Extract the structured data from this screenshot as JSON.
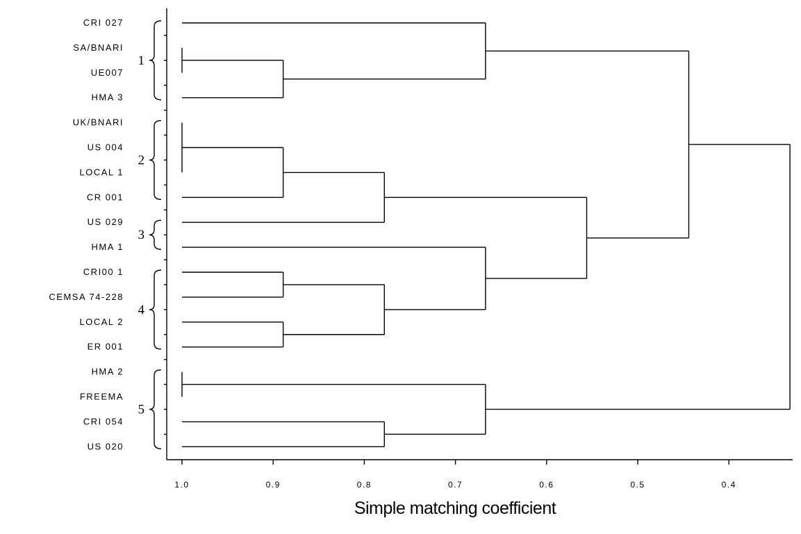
{
  "chart_data": {
    "type": "dendrogram",
    "xlabel": "Simple matching coefficient",
    "xlim": [
      1.0,
      0.33
    ],
    "ticks": [
      {
        "value": 1.0,
        "label": "1.0"
      },
      {
        "value": 0.9,
        "label": "0.9"
      },
      {
        "value": 0.8,
        "label": "0.8"
      },
      {
        "value": 0.7,
        "label": "0.7"
      },
      {
        "value": 0.6,
        "label": "0.6"
      },
      {
        "value": 0.5,
        "label": "0.5"
      },
      {
        "value": 0.4,
        "label": "0.4"
      }
    ],
    "leaves": [
      "CRI 027",
      "SA/BNARI",
      "UE007",
      "HMA 3",
      "UK/BNARI",
      "US 004",
      "LOCAL 1",
      "CR 001",
      "US 029",
      "HMA 1",
      "CRI00 1",
      "CEMSA 74-228",
      "LOCAL 2",
      "ER 001",
      "HMA 2",
      "FREEMA",
      "CRI 054",
      "US 020"
    ],
    "groups": [
      {
        "label": "1",
        "first": 0,
        "last": 3
      },
      {
        "label": "2",
        "first": 4,
        "last": 7
      },
      {
        "label": "3",
        "first": 8,
        "last": 9
      },
      {
        "label": "4",
        "first": 10,
        "last": 13
      },
      {
        "label": "5",
        "first": 14,
        "last": 17
      }
    ],
    "merges": [
      {
        "id": "n1",
        "children": [
          "L1",
          "L2"
        ],
        "height": 1.0
      },
      {
        "id": "n2",
        "children": [
          "n1",
          "L3"
        ],
        "height": 0.889
      },
      {
        "id": "n3",
        "children": [
          "L0",
          "n2"
        ],
        "height": 0.667
      },
      {
        "id": "n4",
        "children": [
          "L4",
          "L5",
          "L6"
        ],
        "height": 1.0
      },
      {
        "id": "n5",
        "children": [
          "n4",
          "L7"
        ],
        "height": 0.889
      },
      {
        "id": "n6",
        "children": [
          "n5",
          "L8"
        ],
        "height": 0.778
      },
      {
        "id": "n7",
        "children": [
          "L10",
          "L11"
        ],
        "height": 0.889
      },
      {
        "id": "n8",
        "children": [
          "L12",
          "L13"
        ],
        "height": 0.889
      },
      {
        "id": "n9",
        "children": [
          "n7",
          "n8"
        ],
        "height": 0.778
      },
      {
        "id": "n10",
        "children": [
          "L9",
          "n9"
        ],
        "height": 0.667
      },
      {
        "id": "n11",
        "children": [
          "n6",
          "n10"
        ],
        "height": 0.556
      },
      {
        "id": "n12",
        "children": [
          "n3",
          "n11"
        ],
        "height": 0.444
      },
      {
        "id": "n13",
        "children": [
          "L14",
          "L15"
        ],
        "height": 1.0
      },
      {
        "id": "n14",
        "children": [
          "L16",
          "L17"
        ],
        "height": 0.778
      },
      {
        "id": "n15",
        "children": [
          "n13",
          "n14"
        ],
        "height": 0.667
      },
      {
        "id": "n16",
        "children": [
          "n12",
          "n15"
        ],
        "height": 0.333
      }
    ]
  }
}
